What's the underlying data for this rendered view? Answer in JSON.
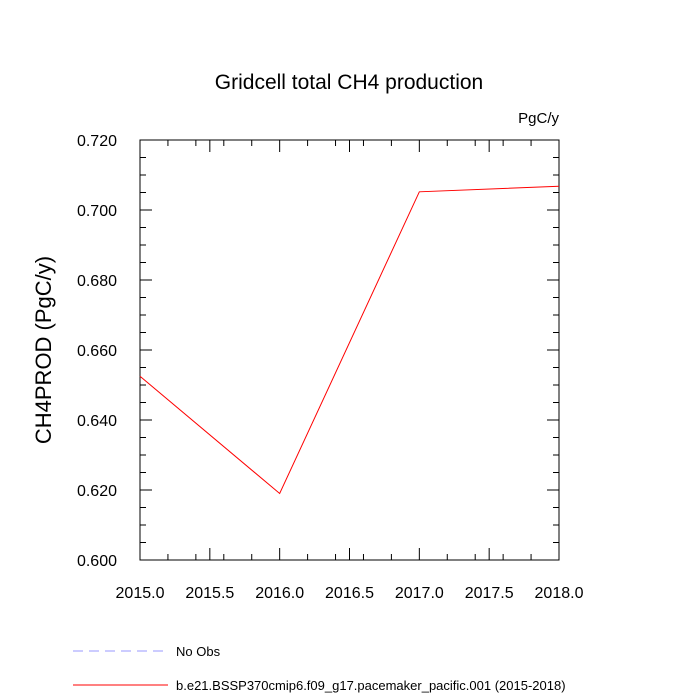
{
  "chart_data": {
    "type": "line",
    "title": "Gridcell total CH4 production",
    "units": "PgC/y",
    "ylabel": "CH4PROD  (PgC/y)",
    "xlabel": "",
    "xlim": [
      2015.0,
      2018.0
    ],
    "ylim": [
      0.6,
      0.72
    ],
    "x_ticks": [
      2015.0,
      2015.5,
      2016.0,
      2016.5,
      2017.0,
      2017.5,
      2018.0
    ],
    "x_tick_labels": [
      "2015.0",
      "2015.5",
      "2016.0",
      "2016.5",
      "2017.0",
      "2017.5",
      "2018.0"
    ],
    "y_ticks": [
      0.6,
      0.62,
      0.64,
      0.66,
      0.68,
      0.7,
      0.72
    ],
    "y_tick_labels": [
      "0.600",
      "0.620",
      "0.640",
      "0.660",
      "0.680",
      "0.700",
      "0.720"
    ],
    "grid": false,
    "series": [
      {
        "name": "b.e21.BSSP370cmip6.f09_g17.pacemaker_pacific.001 (2015-2018)",
        "color": "#ff0000",
        "x": [
          2015.0,
          2016.0,
          2017.0,
          2018.0
        ],
        "y": [
          0.6525,
          0.619,
          0.7052,
          0.7068
        ]
      }
    ],
    "legend": [
      {
        "label": "No Obs",
        "color": "#9999ff",
        "style": "dashed"
      },
      {
        "label": "b.e21.BSSP370cmip6.f09_g17.pacemaker_pacific.001 (2015-2018)",
        "color": "#ff0000",
        "style": "solid"
      }
    ],
    "legend_position": "bottom"
  }
}
